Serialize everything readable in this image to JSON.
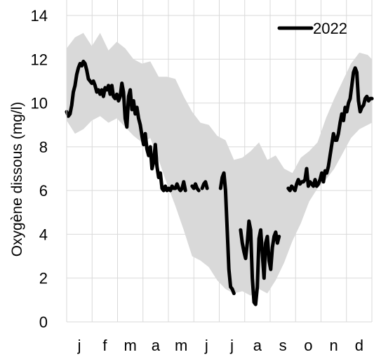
{
  "chart_data": {
    "type": "line",
    "title": "",
    "xlabel": "",
    "ylabel": "Oxygène dissous (mg/l)",
    "ylim": [
      0,
      14
    ],
    "yticks": [
      0,
      2,
      4,
      6,
      8,
      10,
      12,
      14
    ],
    "xlim": [
      0,
      365
    ],
    "categories": [
      "j",
      "f",
      "m",
      "a",
      "m",
      "j",
      "j",
      "a",
      "s",
      "o",
      "n",
      "d"
    ],
    "grid": true,
    "legend_position": "top-right",
    "colors": {
      "series": "#000000",
      "band": "#d9d9d9",
      "grid": "#d9d9d9"
    },
    "band": {
      "x": [
        0,
        10,
        20,
        30,
        40,
        50,
        60,
        70,
        80,
        90,
        100,
        110,
        120,
        130,
        140,
        150,
        160,
        170,
        180,
        190,
        200,
        210,
        220,
        230,
        240,
        250,
        260,
        270,
        280,
        290,
        300,
        310,
        320,
        330,
        340,
        350,
        360,
        365
      ],
      "upper": [
        12.5,
        13,
        13.2,
        12.6,
        13.2,
        12.4,
        12.8,
        12.5,
        12,
        11.8,
        11.9,
        11.2,
        11.2,
        11.1,
        10.3,
        9.6,
        9.1,
        9,
        8.5,
        8.3,
        7.4,
        7.5,
        7.8,
        8.2,
        7.4,
        7.6,
        7.0,
        6.8,
        7.5,
        7.8,
        8.2,
        9.3,
        10.2,
        11,
        11.8,
        12.3,
        12.2,
        12
      ],
      "lower": [
        9.2,
        8.6,
        8.8,
        9.2,
        9.4,
        9.1,
        9.3,
        8.9,
        8.5,
        8.2,
        8.4,
        7.4,
        6.3,
        5.3,
        4.2,
        3.0,
        2.8,
        2.5,
        1.9,
        1.5,
        1.3,
        1.4,
        1.2,
        1.5,
        1.3,
        1.9,
        2.7,
        3.7,
        4.5,
        5.5,
        6.1,
        6.5,
        7.0,
        7.7,
        8.4,
        8.8,
        9.0,
        9.1
      ]
    },
    "series": [
      {
        "name": "2022",
        "segments": [
          {
            "x": [
              0,
              2,
              4,
              6,
              8,
              10,
              12,
              14,
              16,
              18,
              20,
              22,
              24,
              26,
              28,
              30,
              32,
              34,
              36,
              38,
              40,
              42,
              44,
              46,
              48,
              50,
              52,
              54,
              56,
              58,
              60,
              62,
              64,
              66,
              68,
              70,
              72,
              74,
              76,
              78,
              80,
              82,
              84,
              86,
              88,
              90,
              92,
              94,
              96,
              98,
              100,
              102,
              104,
              106,
              108,
              110,
              112,
              114,
              116,
              118,
              120,
              122,
              124,
              126,
              128,
              130,
              132,
              134,
              136,
              138,
              140,
              142
            ],
            "y": [
              9.6,
              9.4,
              9.5,
              9.9,
              10.5,
              10.8,
              11.3,
              11.6,
              11.8,
              11.7,
              11.9,
              11.8,
              11.5,
              11.1,
              11.0,
              10.9,
              11.0,
              10.8,
              10.5,
              10.6,
              10.4,
              10.6,
              10.3,
              10.7,
              10.6,
              10.8,
              10.4,
              10.8,
              10.3,
              10.2,
              10.4,
              10.1,
              10.3,
              10.9,
              10.5,
              9.3,
              8.9,
              10.3,
              10.6,
              9.7,
              10.1,
              9.5,
              9.8,
              9.3,
              9.0,
              8.5,
              8.1,
              8.6,
              7.9,
              7.6,
              8.0,
              7.0,
              7.3,
              8.1,
              7.1,
              6.6,
              6.8,
              6.1,
              6.0,
              6.2,
              6.0,
              6.1,
              6.0,
              6.2,
              6.1,
              6.1,
              6.3,
              6.1,
              6.0,
              6.1,
              6.4,
              6.0
            ]
          },
          {
            "x": [
              150,
              152,
              154,
              156,
              158
            ],
            "y": [
              6.2,
              6.1,
              6.3,
              6.1,
              6.0
            ]
          },
          {
            "x": [
              162,
              164,
              166,
              168
            ],
            "y": [
              6.1,
              6.3,
              6.4,
              6.1
            ]
          },
          {
            "x": [
              184,
              186,
              188,
              190,
              192,
              194,
              196,
              198,
              200
            ],
            "y": [
              6.1,
              6.6,
              6.8,
              6.0,
              4.2,
              2.4,
              1.6,
              1.5,
              1.3
            ]
          },
          {
            "x": [
              208,
              210,
              212,
              214,
              216,
              218,
              220,
              222,
              224,
              226,
              228,
              230,
              232,
              234,
              236,
              238,
              240,
              242,
              244,
              246,
              248,
              250,
              252,
              254
            ],
            "y": [
              4.2,
              3.6,
              3.2,
              2.9,
              3.6,
              4.6,
              4.2,
              2.0,
              0.9,
              0.8,
              1.6,
              3.8,
              4.2,
              3.1,
              2.0,
              3.6,
              3.9,
              2.8,
              2.4,
              3.4,
              3.9,
              4.1,
              3.6,
              3.9
            ]
          },
          {
            "x": [
              265,
              267,
              269,
              271,
              273,
              275,
              277,
              279,
              281,
              283,
              285,
              287,
              289,
              291,
              293,
              295,
              297,
              299,
              301,
              303,
              305,
              307,
              309,
              311,
              313,
              315,
              317,
              319,
              321,
              323,
              325,
              327,
              329,
              331,
              333,
              335,
              337,
              339,
              341,
              343,
              345,
              347,
              349,
              351,
              353,
              355,
              357,
              359,
              361,
              363,
              365
            ],
            "y": [
              6.1,
              6.0,
              6.2,
              6.1,
              6.0,
              6.3,
              6.5,
              6.3,
              6.4,
              6.4,
              6.5,
              7.0,
              6.2,
              6.4,
              6.3,
              6.2,
              6.5,
              6.2,
              6.3,
              6.5,
              6.8,
              6.4,
              6.9,
              6.8,
              7.1,
              7.6,
              8.1,
              8.6,
              8.3,
              8.3,
              8.6,
              9.1,
              9.5,
              9.2,
              9.8,
              9.6,
              10.0,
              10.2,
              10.8,
              11.4,
              11.6,
              11.4,
              10.1,
              9.6,
              9.8,
              9.9,
              10.2,
              10.3,
              10.1,
              10.2,
              10.2
            ]
          }
        ]
      }
    ]
  }
}
